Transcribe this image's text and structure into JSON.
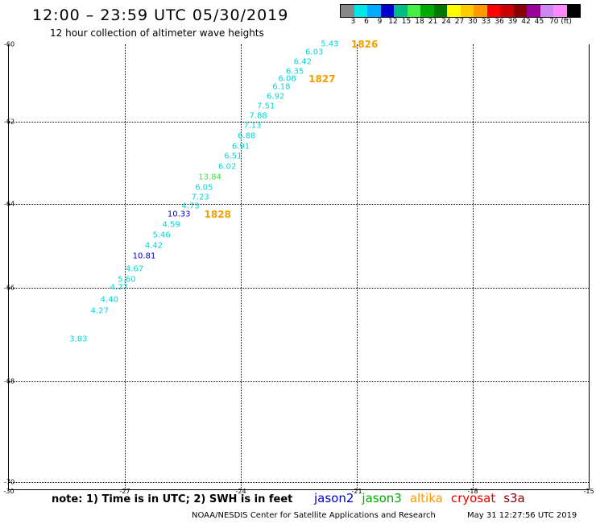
{
  "title": "12:00 – 23:59 UTC 05/30/2019",
  "subtitle": "12 hour collection of altimeter wave heights",
  "legend": {
    "colors": [
      "#888888",
      "#00e5e5",
      "#00aaff",
      "#0000cc",
      "#00bb88",
      "#44ee44",
      "#00aa00",
      "#007700",
      "#ffff00",
      "#ffcc00",
      "#ff9900",
      "#ff0000",
      "#cc0000",
      "#880000",
      "#990099",
      "#cc88ee",
      "#ff88ff",
      "#000000"
    ],
    "labels": [
      "3",
      "6",
      "9",
      "12",
      "15",
      "18",
      "21",
      "24",
      "27",
      "30",
      "33",
      "36",
      "39",
      "42",
      "45",
      "70 (ft)"
    ]
  },
  "map": {
    "lat_labels": [
      "-60",
      "-62",
      "-64",
      "-66",
      "-68",
      "-70"
    ],
    "lon_labels": [
      "-30",
      "-27",
      "-24",
      "-21",
      "-18",
      "-15"
    ],
    "points": [
      {
        "label": "5.43",
        "color": "#00d8d8",
        "lon": -21.7,
        "lat": -60.0
      },
      {
        "label": "6.03",
        "color": "#00d8d8",
        "lon": -22.1,
        "lat": -60.2
      },
      {
        "label": "6.42",
        "color": "#00d8d8",
        "lon": -22.4,
        "lat": -60.45
      },
      {
        "label": "6.35",
        "color": "#00d8d8",
        "lon": -22.6,
        "lat": -60.7
      },
      {
        "label": "6.08",
        "color": "#00d8d8",
        "lon": -22.8,
        "lat": -60.9
      },
      {
        "label": "6.18",
        "color": "#00d8d8",
        "lon": -22.95,
        "lat": -61.1
      },
      {
        "label": "6.92",
        "color": "#00d8d8",
        "lon": -23.1,
        "lat": -61.35
      },
      {
        "label": "7.51",
        "color": "#00d8d8",
        "lon": -23.35,
        "lat": -61.6
      },
      {
        "label": "7.88",
        "color": "#00d8d8",
        "lon": -23.55,
        "lat": -61.85
      },
      {
        "label": "7.13",
        "color": "#00d8d8",
        "lon": -23.7,
        "lat": -62.1
      },
      {
        "label": "6.88",
        "color": "#00d8d8",
        "lon": -23.85,
        "lat": -62.35
      },
      {
        "label": "6.91",
        "color": "#00d8d8",
        "lon": -24.0,
        "lat": -62.6
      },
      {
        "label": "6.51",
        "color": "#00d8d8",
        "lon": -24.2,
        "lat": -62.85
      },
      {
        "label": "6.02",
        "color": "#00d8d8",
        "lon": -24.35,
        "lat": -63.1
      },
      {
        "label": "13.84",
        "color": "#33ee33",
        "lon": -24.8,
        "lat": -63.35
      },
      {
        "label": "6.05",
        "color": "#00d8d8",
        "lon": -24.95,
        "lat": -63.6
      },
      {
        "label": "7.23",
        "color": "#00d8d8",
        "lon": -25.05,
        "lat": -63.85
      },
      {
        "label": "4.73",
        "color": "#00d8d8",
        "lon": -25.3,
        "lat": -64.05
      },
      {
        "label": "10.33",
        "color": "#0000cc",
        "lon": -25.6,
        "lat": -64.25
      },
      {
        "label": "4.59",
        "color": "#00d8d8",
        "lon": -25.8,
        "lat": -64.5
      },
      {
        "label": "5.46",
        "color": "#00d8d8",
        "lon": -26.05,
        "lat": -64.75
      },
      {
        "label": "4.42",
        "color": "#00d8d8",
        "lon": -26.25,
        "lat": -65.0
      },
      {
        "label": "10.81",
        "color": "#0000cc",
        "lon": -26.5,
        "lat": -65.25
      },
      {
        "label": "4.67",
        "color": "#00d8d8",
        "lon": -26.75,
        "lat": -65.55
      },
      {
        "label": "5.60",
        "color": "#00d8d8",
        "lon": -26.95,
        "lat": -65.8
      },
      {
        "label": "4.77",
        "color": "#00d8d8",
        "lon": -27.15,
        "lat": -66.0
      },
      {
        "label": "4.40",
        "color": "#00d8d8",
        "lon": -27.4,
        "lat": -66.25
      },
      {
        "label": "4.27",
        "color": "#00d8d8",
        "lon": -27.65,
        "lat": -66.5
      },
      {
        "label": "3.83",
        "color": "#00d8d8",
        "lon": -28.2,
        "lat": -67.1
      }
    ],
    "passes": [
      {
        "label": "1826",
        "lon": -20.8,
        "lat": -60.0
      },
      {
        "label": "1827",
        "lon": -21.9,
        "lat": -60.9
      },
      {
        "label": "1828",
        "lon": -24.6,
        "lat": -64.25
      }
    ]
  },
  "note": "note: 1) Time is in UTC; 2) SWH is in feet",
  "satellites": [
    {
      "name": "jason2",
      "color": "#0000cc"
    },
    {
      "name": "jason3",
      "color": "#00aa00"
    },
    {
      "name": "altika",
      "color": "#ff9900"
    },
    {
      "name": "cryosat",
      "color": "#ee0000"
    },
    {
      "name": "s3a",
      "color": "#880000"
    }
  ],
  "footer_left": "NOAA/NESDIS Center for Satellite Applications and Research",
  "footer_right": "May 31 12:27:56 UTC 2019"
}
